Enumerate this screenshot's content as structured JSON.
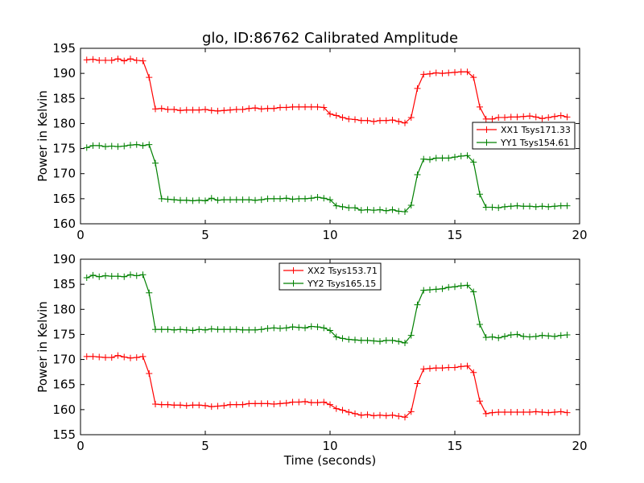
{
  "title": "glo, ID:86762 Calibrated Amplitude",
  "chart_data": [
    {
      "type": "line",
      "xlabel": "",
      "ylabel": "Power in Kelvin",
      "xlim": [
        0,
        20
      ],
      "ylim": [
        160,
        195
      ],
      "xticks": [
        "0",
        "5",
        "10",
        "15",
        "20"
      ],
      "yticks": [
        "160",
        "165",
        "170",
        "175",
        "180",
        "185",
        "190",
        "195"
      ],
      "legend_position": "center-right",
      "x": [
        0.25,
        0.5,
        0.75,
        1.0,
        1.25,
        1.5,
        1.75,
        2.0,
        2.25,
        2.5,
        2.75,
        3.0,
        3.25,
        3.5,
        3.75,
        4.0,
        4.25,
        4.5,
        4.75,
        5.0,
        5.25,
        5.5,
        5.75,
        6.0,
        6.25,
        6.5,
        6.75,
        7.0,
        7.25,
        7.5,
        7.75,
        8.0,
        8.25,
        8.5,
        8.75,
        9.0,
        9.25,
        9.5,
        9.75,
        10.0,
        10.25,
        10.5,
        10.75,
        11.0,
        11.25,
        11.5,
        11.75,
        12.0,
        12.25,
        12.5,
        12.75,
        13.0,
        13.25,
        13.5,
        13.75,
        14.0,
        14.25,
        14.5,
        14.75,
        15.0,
        15.25,
        15.5,
        15.75,
        16.0,
        16.25,
        16.5,
        16.75,
        17.0,
        17.25,
        17.5,
        17.75,
        18.0,
        18.25,
        18.5,
        18.75,
        19.0,
        19.25,
        19.5
      ],
      "series": [
        {
          "name": "XX1 Tsys171.33",
          "color": "#ff0000",
          "values": [
            192.7,
            192.8,
            192.6,
            192.6,
            192.6,
            192.9,
            192.5,
            192.9,
            192.6,
            192.5,
            189.2,
            182.9,
            183.0,
            182.8,
            182.8,
            182.6,
            182.7,
            182.7,
            182.7,
            182.8,
            182.6,
            182.5,
            182.6,
            182.7,
            182.8,
            182.8,
            183.0,
            183.1,
            182.9,
            183.0,
            183.0,
            183.2,
            183.2,
            183.3,
            183.3,
            183.3,
            183.3,
            183.3,
            183.2,
            181.9,
            181.6,
            181.2,
            180.9,
            180.8,
            180.6,
            180.6,
            180.4,
            180.6,
            180.6,
            180.7,
            180.4,
            180.1,
            181.2,
            187.0,
            189.8,
            189.9,
            190.1,
            190.0,
            190.1,
            190.2,
            190.3,
            190.3,
            189.2,
            183.3,
            180.9,
            180.9,
            181.2,
            181.2,
            181.3,
            181.3,
            181.4,
            181.5,
            181.3,
            181.0,
            181.2,
            181.4,
            181.6,
            181.3
          ]
        },
        {
          "name": "YY1 Tsys154.61",
          "color": "#008000",
          "values": [
            175.2,
            175.6,
            175.6,
            175.4,
            175.5,
            175.4,
            175.5,
            175.7,
            175.8,
            175.6,
            175.8,
            172.1,
            165.0,
            164.9,
            164.8,
            164.7,
            164.7,
            164.6,
            164.7,
            164.6,
            165.1,
            164.7,
            164.8,
            164.8,
            164.8,
            164.8,
            164.8,
            164.7,
            164.8,
            165.0,
            165.0,
            165.0,
            165.1,
            164.9,
            165.0,
            165.0,
            165.1,
            165.3,
            165.1,
            164.8,
            163.6,
            163.4,
            163.2,
            163.2,
            162.7,
            162.8,
            162.7,
            162.8,
            162.6,
            162.8,
            162.5,
            162.4,
            163.7,
            169.8,
            172.9,
            172.8,
            173.1,
            173.1,
            173.1,
            173.3,
            173.5,
            173.6,
            172.3,
            165.9,
            163.3,
            163.3,
            163.2,
            163.4,
            163.5,
            163.6,
            163.5,
            163.5,
            163.4,
            163.5,
            163.4,
            163.5,
            163.6,
            163.6
          ]
        }
      ]
    },
    {
      "type": "line",
      "xlabel": "Time (seconds)",
      "ylabel": "Power in Kelvin",
      "xlim": [
        0,
        20
      ],
      "ylim": [
        155,
        190
      ],
      "xticks": [
        "0",
        "5",
        "10",
        "15",
        "20"
      ],
      "yticks": [
        "155",
        "160",
        "165",
        "170",
        "175",
        "180",
        "185",
        "190"
      ],
      "legend_position": "upper-center",
      "x": [
        0.25,
        0.5,
        0.75,
        1.0,
        1.25,
        1.5,
        1.75,
        2.0,
        2.25,
        2.5,
        2.75,
        3.0,
        3.25,
        3.5,
        3.75,
        4.0,
        4.25,
        4.5,
        4.75,
        5.0,
        5.25,
        5.5,
        5.75,
        6.0,
        6.25,
        6.5,
        6.75,
        7.0,
        7.25,
        7.5,
        7.75,
        8.0,
        8.25,
        8.5,
        8.75,
        9.0,
        9.25,
        9.5,
        9.75,
        10.0,
        10.25,
        10.5,
        10.75,
        11.0,
        11.25,
        11.5,
        11.75,
        12.0,
        12.25,
        12.5,
        12.75,
        13.0,
        13.25,
        13.5,
        13.75,
        14.0,
        14.25,
        14.5,
        14.75,
        15.0,
        15.25,
        15.5,
        15.75,
        16.0,
        16.25,
        16.5,
        16.75,
        17.0,
        17.25,
        17.5,
        17.75,
        18.0,
        18.25,
        18.5,
        18.75,
        19.0,
        19.25,
        19.5
      ],
      "series": [
        {
          "name": "XX2 Tsys153.71",
          "color": "#ff0000",
          "values": [
            170.6,
            170.6,
            170.5,
            170.4,
            170.4,
            170.8,
            170.5,
            170.3,
            170.4,
            170.6,
            167.2,
            161.1,
            161.0,
            161.0,
            160.9,
            160.9,
            160.8,
            160.9,
            160.9,
            160.8,
            160.6,
            160.7,
            160.8,
            161.0,
            161.0,
            161.0,
            161.2,
            161.2,
            161.2,
            161.2,
            161.1,
            161.2,
            161.3,
            161.5,
            161.5,
            161.6,
            161.4,
            161.4,
            161.5,
            161.0,
            160.2,
            159.9,
            159.5,
            159.2,
            158.9,
            159.0,
            158.8,
            158.9,
            158.8,
            158.9,
            158.7,
            158.5,
            159.6,
            165.2,
            168.1,
            168.2,
            168.3,
            168.3,
            168.4,
            168.4,
            168.6,
            168.7,
            167.4,
            161.7,
            159.2,
            159.4,
            159.5,
            159.5,
            159.5,
            159.5,
            159.5,
            159.5,
            159.6,
            159.5,
            159.4,
            159.5,
            159.6,
            159.4
          ]
        },
        {
          "name": "YY2 Tsys165.15",
          "color": "#008000",
          "values": [
            186.3,
            186.8,
            186.5,
            186.7,
            186.6,
            186.6,
            186.5,
            186.9,
            186.7,
            186.9,
            183.3,
            176.0,
            176.0,
            176.0,
            175.9,
            176.0,
            175.9,
            175.8,
            176.0,
            175.9,
            176.1,
            176.0,
            176.0,
            176.0,
            176.0,
            175.9,
            175.9,
            175.9,
            176.0,
            176.2,
            176.3,
            176.2,
            176.3,
            176.5,
            176.4,
            176.3,
            176.6,
            176.5,
            176.3,
            175.8,
            174.5,
            174.2,
            174.0,
            173.9,
            173.8,
            173.8,
            173.7,
            173.6,
            173.8,
            173.8,
            173.6,
            173.3,
            174.8,
            180.9,
            183.8,
            183.9,
            184.0,
            184.1,
            184.4,
            184.5,
            184.7,
            184.8,
            183.5,
            177.0,
            174.4,
            174.5,
            174.3,
            174.6,
            174.9,
            175.0,
            174.6,
            174.5,
            174.6,
            174.8,
            174.7,
            174.6,
            174.8,
            174.9
          ]
        }
      ]
    }
  ]
}
